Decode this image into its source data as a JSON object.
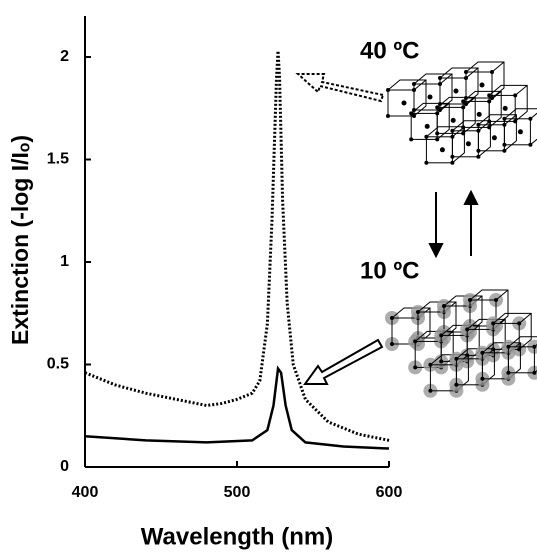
{
  "chart_data": {
    "type": "line",
    "x_label": "Wavelength (nm)",
    "y_label": "Extinction (-log I/Iₒ)",
    "xlim": [
      400,
      600
    ],
    "xticks": [
      400,
      500,
      600
    ],
    "ylim": [
      0,
      2.2
    ],
    "yticks": [
      0,
      0.5,
      1,
      1.5,
      2
    ],
    "annotations": [
      "40 ºC",
      "10 ºC"
    ],
    "series": [
      {
        "color": "#000000",
        "style": "dotted",
        "x": [
          400,
          420,
          440,
          460,
          480,
          490,
          500,
          510,
          515,
          520,
          523,
          526,
          527,
          528,
          530,
          533,
          537,
          545,
          560,
          580,
          600
        ],
        "values": [
          0.46,
          0.4,
          0.36,
          0.33,
          0.3,
          0.31,
          0.33,
          0.36,
          0.42,
          0.7,
          1.2,
          1.9,
          2.03,
          1.9,
          1.3,
          0.8,
          0.5,
          0.33,
          0.22,
          0.16,
          0.13
        ]
      },
      {
        "color": "#000000",
        "style": "solid",
        "x": [
          400,
          440,
          480,
          510,
          520,
          524,
          527,
          529,
          532,
          536,
          545,
          570,
          600
        ],
        "values": [
          0.15,
          0.13,
          0.12,
          0.13,
          0.18,
          0.3,
          0.48,
          0.46,
          0.3,
          0.18,
          0.12,
          0.1,
          0.09
        ]
      }
    ]
  }
}
